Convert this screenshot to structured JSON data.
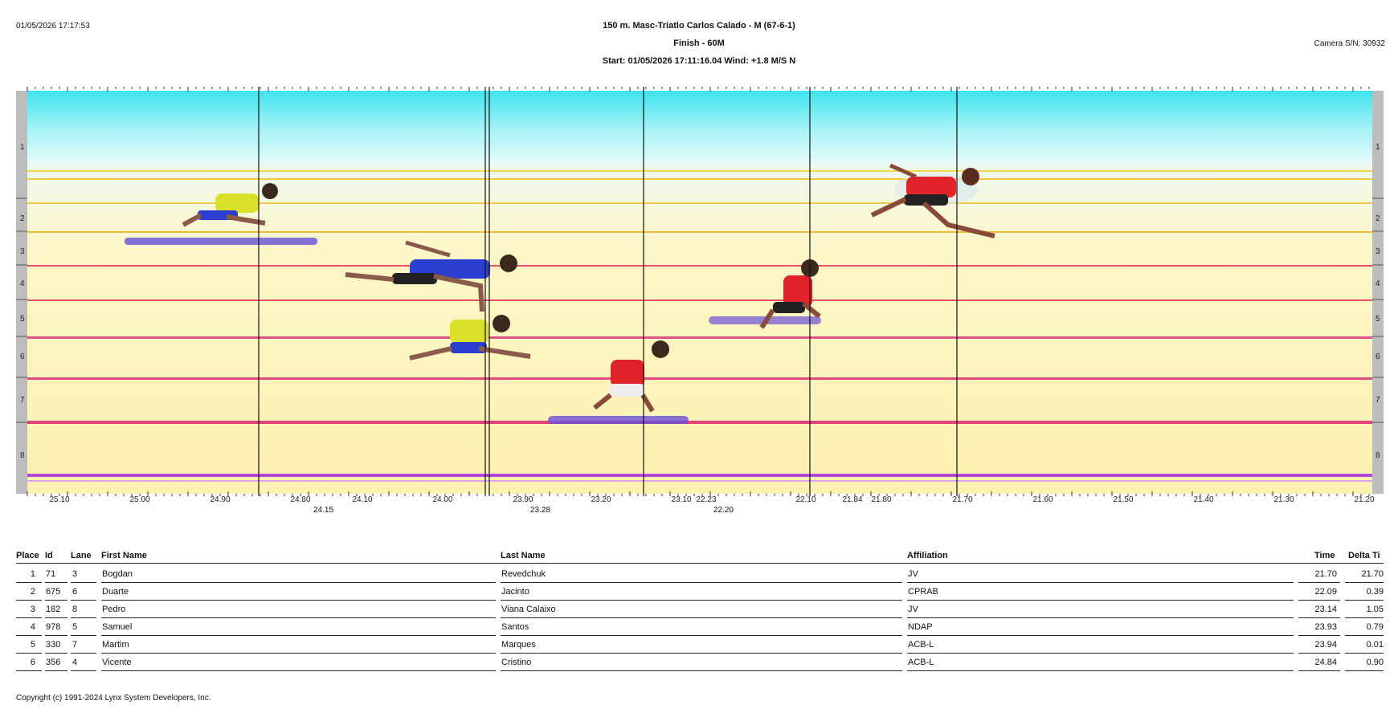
{
  "header": {
    "printed_at": "01/05/2026 17:17:53",
    "title": "150 m. Masc-Triatlo Carlos Calado - M (67-6-1)",
    "subtitle": "Finish - 60M",
    "start_info": "Start: 01/05/2026 17:11:16.04    Wind: +1.8 M/S N",
    "camera": "Camera S/N: 30932"
  },
  "photo": {
    "lanes": [
      "1",
      "2",
      "3",
      "4",
      "5",
      "6",
      "7",
      "8"
    ],
    "time_ticks": [
      "25.10",
      "25.00",
      "24.90",
      "24.80",
      "24.10",
      "24.00",
      "23.90",
      "23.20",
      "23.10",
      "22.23",
      "22.10",
      "21.84",
      "21.80",
      "21.70",
      "21.60",
      "21.50",
      "21.40",
      "21.30",
      "21.20"
    ],
    "finish_times_lower": [
      "24.15",
      "23.28",
      "22.20"
    ]
  },
  "results": {
    "columns": {
      "place": "Place",
      "id": "Id",
      "lane": "Lane",
      "first": "First Name",
      "last": "Last Name",
      "affiliation": "Affiliation",
      "time": "Time",
      "delta": "Delta Ti"
    },
    "rows": [
      {
        "place": "1",
        "id": "71",
        "lane": "3",
        "first": "Bogdan",
        "last": "Revedchuk",
        "affiliation": "JV",
        "time": "21.70",
        "delta": "21.70"
      },
      {
        "place": "2",
        "id": "675",
        "lane": "6",
        "first": "Duarte",
        "last": "Jacinto",
        "affiliation": "CPRAB",
        "time": "22.09",
        "delta": "0.39"
      },
      {
        "place": "3",
        "id": "182",
        "lane": "8",
        "first": "Pedro",
        "last": "Viana Calaixo",
        "affiliation": "JV",
        "time": "23.14",
        "delta": "1.05"
      },
      {
        "place": "4",
        "id": "978",
        "lane": "5",
        "first": "Samuel",
        "last": "Santos",
        "affiliation": "NDAP",
        "time": "23.93",
        "delta": "0.79"
      },
      {
        "place": "5",
        "id": "330",
        "lane": "7",
        "first": "Martim",
        "last": "Marques",
        "affiliation": "ACB-L",
        "time": "23.94",
        "delta": "0.01"
      },
      {
        "place": "6",
        "id": "356",
        "lane": "4",
        "first": "Vicente",
        "last": "Cristino",
        "affiliation": "ACB-L",
        "time": "24.84",
        "delta": "0.90"
      }
    ]
  },
  "footer": {
    "copyright": "Copyright (c) 1991-2024 Lynx System Developers, Inc."
  },
  "colors": {
    "sky": "#3fe3ee",
    "track": "#fdf6b8",
    "lane_line_red": "#e8506a",
    "lane_line_purple": "#b447d8",
    "runner_red": "#e0242a",
    "runner_blue": "#2a3fd0",
    "runner_yellow": "#d9e02a"
  }
}
